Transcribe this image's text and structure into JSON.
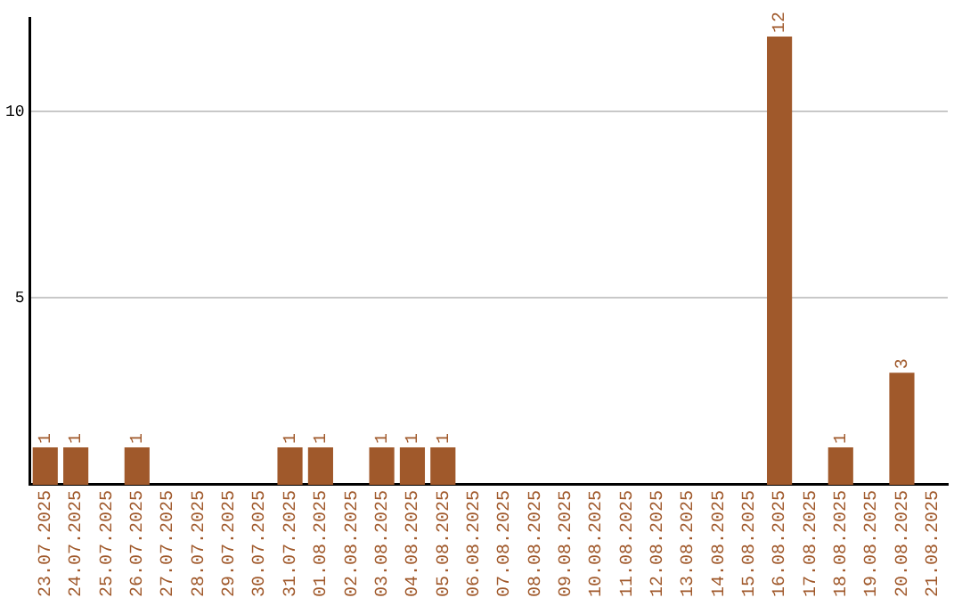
{
  "chart_data": {
    "type": "bar",
    "categories": [
      "23.07.2025",
      "24.07.2025",
      "25.07.2025",
      "26.07.2025",
      "27.07.2025",
      "28.07.2025",
      "29.07.2025",
      "30.07.2025",
      "31.07.2025",
      "01.08.2025",
      "02.08.2025",
      "03.08.2025",
      "04.08.2025",
      "05.08.2025",
      "06.08.2025",
      "07.08.2025",
      "08.08.2025",
      "09.08.2025",
      "10.08.2025",
      "11.08.2025",
      "12.08.2025",
      "13.08.2025",
      "14.08.2025",
      "15.08.2025",
      "16.08.2025",
      "17.08.2025",
      "18.08.2025",
      "19.08.2025",
      "20.08.2025",
      "21.08.2025"
    ],
    "values": [
      1,
      1,
      0,
      1,
      0,
      0,
      0,
      0,
      1,
      1,
      0,
      1,
      1,
      1,
      0,
      0,
      0,
      0,
      0,
      0,
      0,
      0,
      0,
      0,
      12,
      0,
      1,
      0,
      3,
      0
    ],
    "value_labels": [
      "1",
      "1",
      null,
      "1",
      null,
      null,
      null,
      null,
      "1",
      "1",
      null,
      "1",
      "1",
      "1",
      null,
      null,
      null,
      null,
      null,
      null,
      null,
      null,
      null,
      null,
      "12",
      null,
      "1",
      null,
      "3",
      null
    ],
    "color": "#a0592b",
    "ylim": [
      0,
      12.5
    ],
    "yticks": [
      5,
      10
    ],
    "grid": "y"
  }
}
